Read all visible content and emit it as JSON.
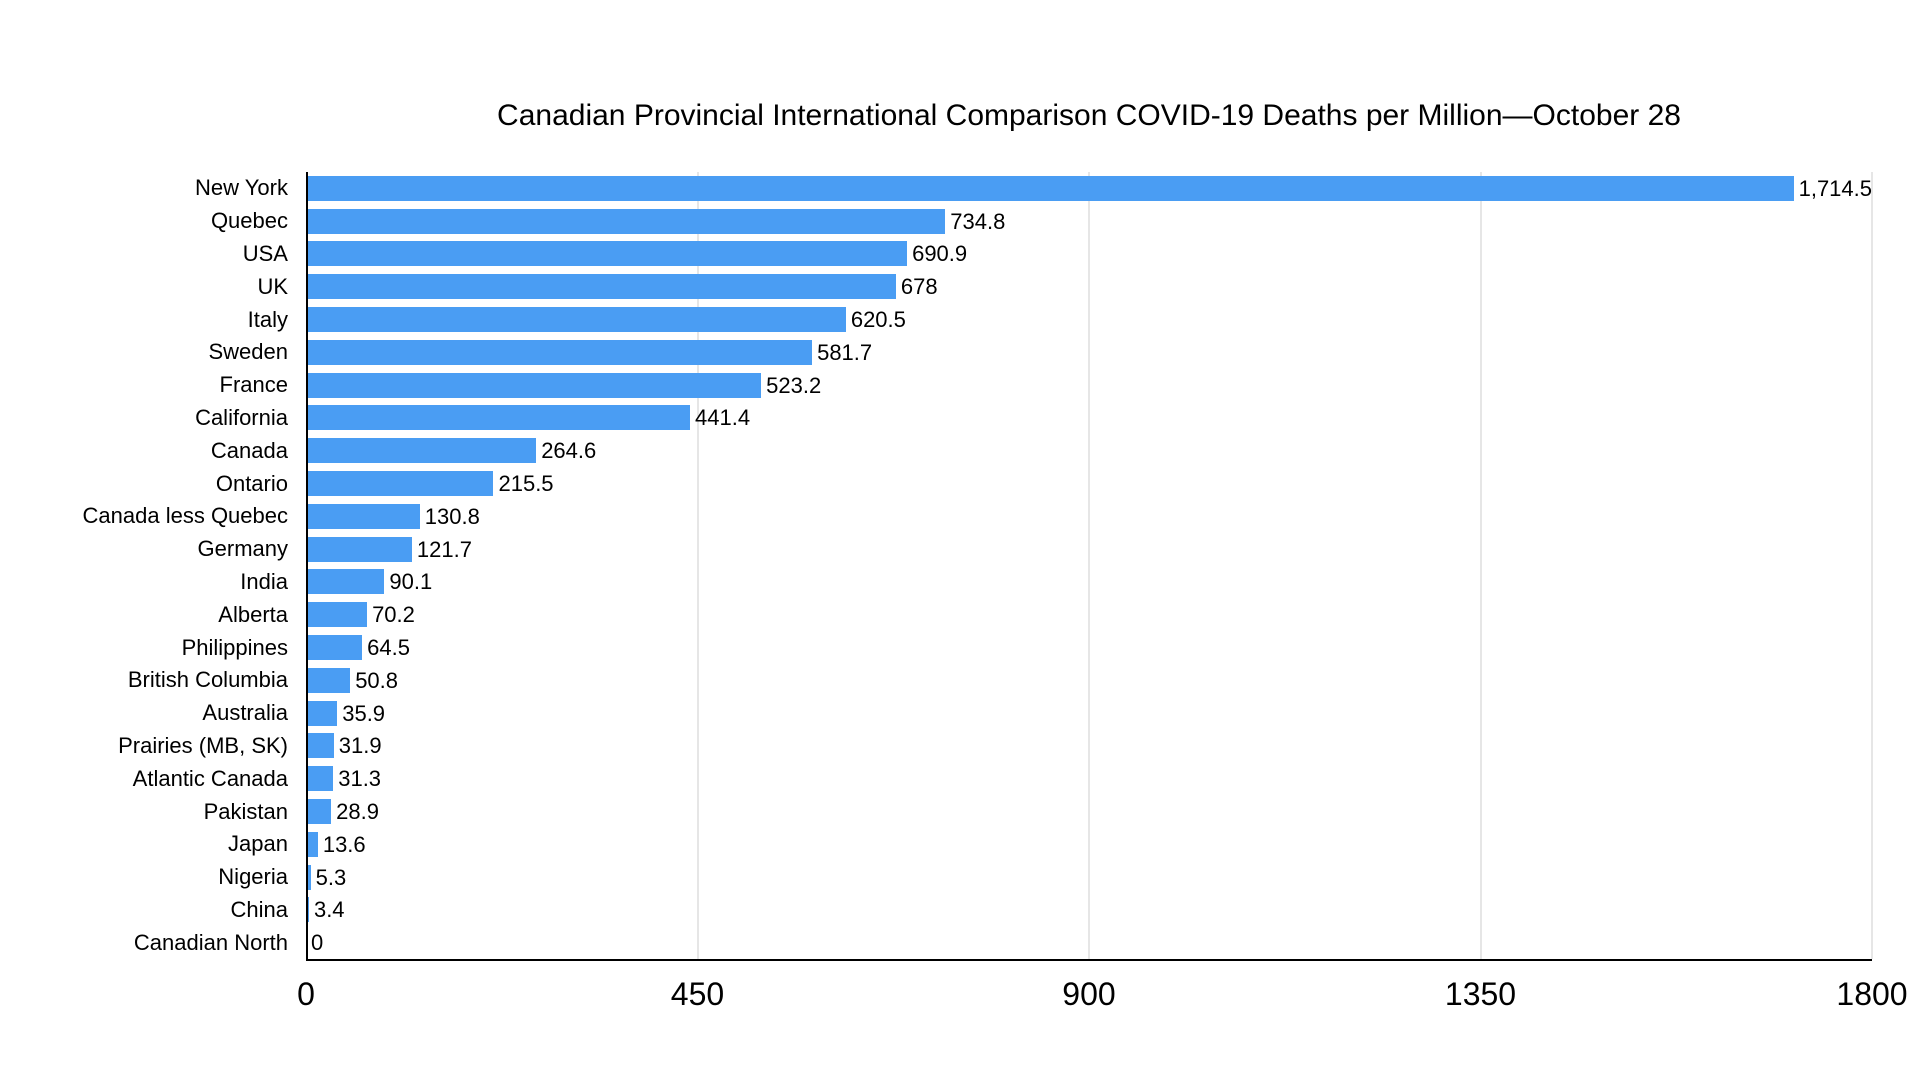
{
  "chart_data": {
    "type": "bar",
    "orientation": "horizontal",
    "title": "Canadian Provincial International Comparison COVID-19 Deaths per Million—October 28",
    "categories": [
      "New York",
      "Quebec",
      "USA",
      "UK",
      "Italy",
      "Sweden",
      "France",
      "California",
      "Canada",
      "Ontario",
      "Canada less Quebec",
      "Germany",
      "India",
      "Alberta",
      "Philippines",
      "British Columbia",
      "Australia",
      "Prairies (MB, SK)",
      "Atlantic Canada",
      "Pakistan",
      "Japan",
      "Nigeria",
      "China",
      "Canadian North"
    ],
    "values": [
      1714.5,
      734.8,
      690.9,
      678,
      620.5,
      581.7,
      523.2,
      441.4,
      264.6,
      215.5,
      130.8,
      121.7,
      90.1,
      70.2,
      64.5,
      50.8,
      35.9,
      31.9,
      31.3,
      28.9,
      13.6,
      5.3,
      3.4,
      0
    ],
    "value_labels": [
      "1,714.5",
      "734.8",
      "690.9",
      "678",
      "620.5",
      "581.7",
      "523.2",
      "441.4",
      "264.6",
      "215.5",
      "130.8",
      "121.7",
      "90.1",
      "70.2",
      "64.5",
      "50.8",
      "35.9",
      "31.9",
      "31.3",
      "28.9",
      "13.6",
      "5.3",
      "3.4",
      "0"
    ],
    "xlabel": "",
    "ylabel": "",
    "xlim": [
      0,
      1800
    ],
    "x_ticks": [
      0,
      450,
      900,
      1350,
      1800
    ],
    "x_tick_labels": [
      "0",
      "450",
      "900",
      "1350",
      "1800"
    ],
    "grid": true,
    "legend": false,
    "bar_color": "#4a9df3",
    "gridline_color": "#cccccc",
    "axis_color": "#000000",
    "background_color": "#ffffff",
    "text_color": "#000000"
  }
}
